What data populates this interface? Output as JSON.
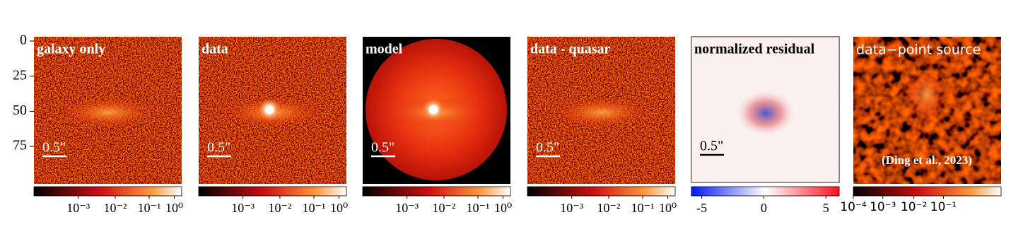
{
  "y_axis": {
    "ticks": [
      0,
      25,
      50,
      75
    ]
  },
  "panels": [
    {
      "title": "galaxy only",
      "scale_bar": "0.5\"",
      "colorbar_ticks": [
        "10⁻³",
        "10⁻²",
        "10⁻¹",
        "10⁰"
      ]
    },
    {
      "title": "data",
      "scale_bar": "0.5\"",
      "colorbar_ticks": [
        "10⁻³",
        "10⁻²",
        "10⁻¹",
        "10⁰"
      ]
    },
    {
      "title": "model",
      "scale_bar": "0.5\"",
      "colorbar_ticks": [
        "10⁻³",
        "10⁻²",
        "10⁻¹",
        "10⁰"
      ]
    },
    {
      "title": "data - quasar",
      "scale_bar": "0.5\"",
      "colorbar_ticks": [
        "10⁻³",
        "10⁻²",
        "10⁻¹",
        "10⁰"
      ]
    },
    {
      "title": "normalized residual",
      "scale_bar": "0.5\"",
      "colorbar_ticks": [
        -5,
        0,
        5
      ]
    },
    {
      "title": "data−point source",
      "annotation": "(Ding et al., 2023)",
      "colorbar_ticks": [
        "10⁻⁴",
        "10⁻³",
        "10⁻²",
        "10⁻¹"
      ]
    }
  ]
}
